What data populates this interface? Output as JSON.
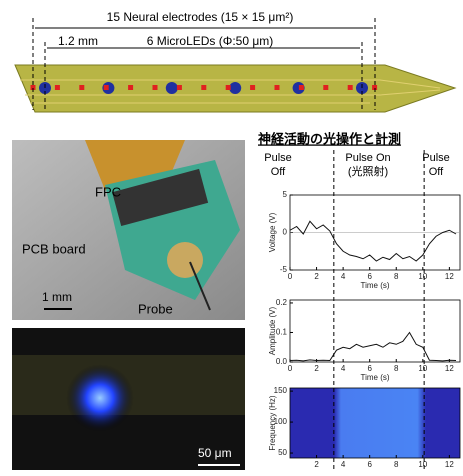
{
  "figure": {
    "probe": {
      "electrodes_label": "15 Neural electrodes (15 × 15 μm²)",
      "spacing_label": "1.2 mm",
      "leds_label": "6 MicroLEDs (Φ:50 μm)"
    },
    "photo1": {
      "labels": [
        "FPC",
        "PCB board",
        "Probe"
      ],
      "scale": "1 mm"
    },
    "photo2": {
      "scale": "50 μm"
    },
    "title": "神経活動の光操作と計測",
    "pulse_labels": [
      [
        "Pulse",
        "Off"
      ],
      [
        "Pulse  On",
        "(光照射)"
      ],
      [
        "Pulse",
        "Off"
      ]
    ],
    "pulse_times": [
      3.3,
      10.1
    ]
  },
  "chart_data": [
    {
      "type": "line",
      "ylabel": "Voltage (V)",
      "xlabel": "Time (s)",
      "color": "#111",
      "x": [
        0,
        0.5,
        1,
        1.5,
        2,
        2.5,
        3,
        3.5,
        4,
        4.5,
        5,
        5.5,
        6,
        6.5,
        7,
        7.5,
        8,
        8.5,
        9,
        9.5,
        10,
        10.5,
        11,
        11.5,
        12,
        12.5
      ],
      "values": [
        0.3,
        0.8,
        -0.2,
        1.5,
        0.5,
        1,
        0.2,
        -1.5,
        -2.5,
        -3,
        -3.2,
        -3.5,
        -3,
        -3.8,
        -3.3,
        -3.6,
        -2.8,
        -3.5,
        -3.2,
        -3.8,
        -3,
        -1.5,
        -0.5,
        0,
        0.3,
        -0.2
      ],
      "xlim": [
        0,
        12.8
      ],
      "ylim": [
        -5,
        5
      ],
      "xticks": [
        0,
        2,
        4,
        6,
        8,
        10,
        12
      ],
      "yticks": [
        5,
        0,
        -5
      ]
    },
    {
      "type": "line",
      "ylabel": "Amplitude (V)",
      "xlabel": "Time (s)",
      "color": "#111",
      "x": [
        0,
        0.5,
        1,
        1.5,
        2,
        2.5,
        3,
        3.5,
        4,
        4.5,
        5,
        5.5,
        6,
        6.5,
        7,
        7.5,
        8,
        8.5,
        9,
        9.5,
        10,
        10.5,
        11,
        11.5,
        12,
        12.5
      ],
      "values": [
        0.005,
        0.006,
        0.004,
        0.007,
        0.005,
        0.006,
        0.005,
        0.04,
        0.05,
        0.045,
        0.06,
        0.05,
        0.055,
        0.06,
        0.05,
        0.065,
        0.06,
        0.07,
        0.1,
        0.06,
        0.05,
        0.006,
        0.005,
        0.004,
        0.006,
        0.005
      ],
      "xlim": [
        0,
        12.8
      ],
      "ylim": [
        0,
        0.21
      ],
      "xticks": [
        0,
        2,
        4,
        6,
        8,
        10,
        12
      ],
      "yticks": [
        0.2,
        0.1,
        {
          "value": 0,
          "label": "0.0"
        }
      ]
    },
    {
      "type": "spectrogram",
      "ylabel": "Frequency (Hz)",
      "xlim": [
        0,
        12.8
      ],
      "ylim": [
        42,
        155
      ],
      "xticks": [
        2,
        4,
        6,
        8,
        10,
        12
      ],
      "yticks": [
        150,
        100,
        50
      ]
    }
  ]
}
